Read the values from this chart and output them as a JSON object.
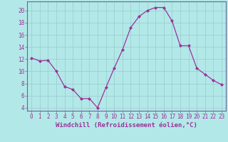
{
  "x": [
    0,
    1,
    2,
    3,
    4,
    5,
    6,
    7,
    8,
    9,
    10,
    11,
    12,
    13,
    14,
    15,
    16,
    17,
    18,
    19,
    20,
    21,
    22,
    23
  ],
  "y": [
    12.2,
    11.7,
    11.8,
    10.0,
    7.5,
    7.0,
    5.5,
    5.5,
    4.0,
    7.3,
    10.5,
    13.5,
    17.2,
    19.0,
    20.0,
    20.5,
    20.5,
    18.3,
    14.2,
    14.2,
    10.5,
    9.5,
    8.5,
    7.8
  ],
  "line_color": "#993399",
  "marker": "D",
  "marker_size": 2,
  "bg_color": "#b3e8e8",
  "grid_color": "#99cccc",
  "xlabel": "Windchill (Refroidissement éolien,°C)",
  "ylabel": "",
  "ylim": [
    3.5,
    21.5
  ],
  "yticks": [
    4,
    6,
    8,
    10,
    12,
    14,
    16,
    18,
    20
  ],
  "xticks": [
    0,
    1,
    2,
    3,
    4,
    5,
    6,
    7,
    8,
    9,
    10,
    11,
    12,
    13,
    14,
    15,
    16,
    17,
    18,
    19,
    20,
    21,
    22,
    23
  ],
  "tick_color": "#993399",
  "label_color": "#993399",
  "spine_color": "#666699",
  "xlabel_fontsize": 6.5,
  "tick_fontsize": 5.5
}
